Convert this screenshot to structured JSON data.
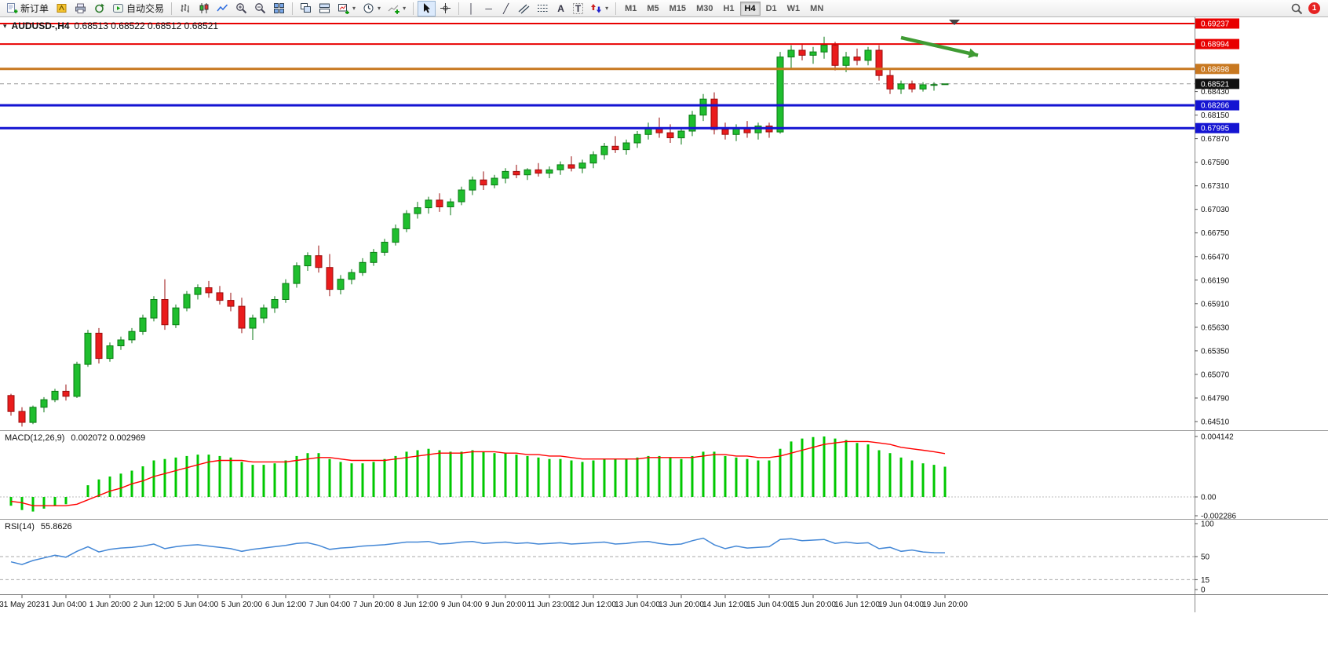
{
  "toolbar": {
    "new_order": "新订单",
    "autotrading": "自动交易",
    "timeframes": [
      "M1",
      "M5",
      "M15",
      "M30",
      "H1",
      "H4",
      "D1",
      "W1",
      "MN"
    ],
    "active_timeframe": "H4",
    "notification_count": "1"
  },
  "icons": {
    "one_click": "▾",
    "caret": "▾",
    "vline": "│",
    "hline": "─",
    "tline": "╱",
    "text_tool": "A",
    "label_tool": "T"
  },
  "chart": {
    "title": "AUDUSD-,H4",
    "ohlc": "0.68513 0.68522 0.68512 0.68521"
  },
  "colors": {
    "bull": "#1FBE2E",
    "bear": "#EA1C1C",
    "bull_stroke": "#0B7A14",
    "bear_stroke": "#9A0D0D",
    "macd_hist": "#00C800",
    "macd_signal": "#FF0000",
    "rsi_line": "#4387D6",
    "arrow": "#3F9B33",
    "badge_current": "#111111"
  },
  "chart_data": [
    {
      "type": "candlestick",
      "symbol": "AUDUSD-",
      "timeframe": "H4",
      "ohlc_display": "0.68513 0.68522 0.68512 0.68521",
      "scale_top": 0.69237,
      "scale_bottom": 0.6451,
      "y_ticks": [
        "0.68430",
        "0.68150",
        "0.67870",
        "0.67590",
        "0.67310",
        "0.67030",
        "0.66750",
        "0.66470",
        "0.66190",
        "0.65910",
        "0.65630",
        "0.65350",
        "0.65070",
        "0.64790",
        "0.64510"
      ],
      "hlines": [
        {
          "price": 0.69237,
          "label": "0.69237",
          "color": "#E80000",
          "width": 2
        },
        {
          "price": 0.68994,
          "label": "0.68994",
          "color": "#E80000",
          "width": 2
        },
        {
          "price": 0.68698,
          "label": "0.68698",
          "color": "#C87820",
          "width": 3
        },
        {
          "price": 0.68266,
          "label": "0.68266",
          "color": "#1414D2",
          "width": 3
        },
        {
          "price": 0.67995,
          "label": "0.67995",
          "color": "#1414D2",
          "width": 3
        }
      ],
      "current_price": {
        "value": 0.68521,
        "label": "0.68521"
      },
      "arrow": {
        "from_index": 81,
        "from_price": 0.6907,
        "to_index": 88,
        "to_price": 0.6886
      },
      "candles": [
        [
          0.6482,
          0.6484,
          0.6458,
          0.6463
        ],
        [
          0.6463,
          0.6468,
          0.6445,
          0.645
        ],
        [
          0.645,
          0.647,
          0.6448,
          0.6468
        ],
        [
          0.6468,
          0.648,
          0.6462,
          0.6477
        ],
        [
          0.6477,
          0.649,
          0.6474,
          0.6487
        ],
        [
          0.6487,
          0.6495,
          0.6476,
          0.6481
        ],
        [
          0.6481,
          0.6522,
          0.6479,
          0.6519
        ],
        [
          0.6519,
          0.656,
          0.6516,
          0.6556
        ],
        [
          0.6556,
          0.6562,
          0.652,
          0.6526
        ],
        [
          0.6526,
          0.6545,
          0.6522,
          0.6541
        ],
        [
          0.6541,
          0.6552,
          0.6536,
          0.6548
        ],
        [
          0.6548,
          0.6562,
          0.6544,
          0.6558
        ],
        [
          0.6558,
          0.6578,
          0.6554,
          0.6574
        ],
        [
          0.6574,
          0.66,
          0.657,
          0.6596
        ],
        [
          0.6596,
          0.662,
          0.656,
          0.6566
        ],
        [
          0.6566,
          0.659,
          0.6562,
          0.6586
        ],
        [
          0.6586,
          0.6606,
          0.6582,
          0.6602
        ],
        [
          0.6602,
          0.6614,
          0.6596,
          0.661
        ],
        [
          0.661,
          0.6618,
          0.6598,
          0.6604
        ],
        [
          0.6604,
          0.6612,
          0.659,
          0.6595
        ],
        [
          0.6595,
          0.6604,
          0.6582,
          0.6588
        ],
        [
          0.6588,
          0.6598,
          0.6556,
          0.6562
        ],
        [
          0.6562,
          0.6578,
          0.6548,
          0.6574
        ],
        [
          0.6574,
          0.659,
          0.6568,
          0.6586
        ],
        [
          0.6586,
          0.66,
          0.658,
          0.6596
        ],
        [
          0.6596,
          0.662,
          0.6592,
          0.6615
        ],
        [
          0.6615,
          0.664,
          0.661,
          0.6636
        ],
        [
          0.6636,
          0.6652,
          0.663,
          0.6648
        ],
        [
          0.6648,
          0.666,
          0.6628,
          0.6634
        ],
        [
          0.6634,
          0.665,
          0.66,
          0.6608
        ],
        [
          0.6608,
          0.6625,
          0.6602,
          0.662
        ],
        [
          0.662,
          0.6632,
          0.6614,
          0.6628
        ],
        [
          0.6628,
          0.6645,
          0.6624,
          0.664
        ],
        [
          0.664,
          0.6656,
          0.6636,
          0.6652
        ],
        [
          0.6652,
          0.6668,
          0.6648,
          0.6664
        ],
        [
          0.6664,
          0.6685,
          0.666,
          0.668
        ],
        [
          0.668,
          0.6702,
          0.6676,
          0.6698
        ],
        [
          0.6698,
          0.6712,
          0.6692,
          0.6705
        ],
        [
          0.6705,
          0.6718,
          0.6698,
          0.6714
        ],
        [
          0.6714,
          0.6722,
          0.67,
          0.6706
        ],
        [
          0.6706,
          0.6716,
          0.6696,
          0.6712
        ],
        [
          0.6712,
          0.673,
          0.6708,
          0.6726
        ],
        [
          0.6726,
          0.6742,
          0.672,
          0.6738
        ],
        [
          0.6738,
          0.6748,
          0.6726,
          0.6732
        ],
        [
          0.6732,
          0.6744,
          0.6728,
          0.674
        ],
        [
          0.674,
          0.6752,
          0.6734,
          0.6748
        ],
        [
          0.6748,
          0.6756,
          0.674,
          0.6744
        ],
        [
          0.6744,
          0.6752,
          0.6738,
          0.675
        ],
        [
          0.675,
          0.6758,
          0.6742,
          0.6746
        ],
        [
          0.6746,
          0.6754,
          0.674,
          0.675
        ],
        [
          0.675,
          0.676,
          0.6744,
          0.6756
        ],
        [
          0.6756,
          0.6766,
          0.6748,
          0.6752
        ],
        [
          0.6752,
          0.6762,
          0.6746,
          0.6758
        ],
        [
          0.6758,
          0.6772,
          0.6752,
          0.6768
        ],
        [
          0.6768,
          0.6782,
          0.6762,
          0.6778
        ],
        [
          0.6778,
          0.679,
          0.677,
          0.6774
        ],
        [
          0.6774,
          0.6786,
          0.6768,
          0.6782
        ],
        [
          0.6782,
          0.6796,
          0.6776,
          0.6792
        ],
        [
          0.6792,
          0.6806,
          0.6786,
          0.68
        ],
        [
          0.68,
          0.6812,
          0.6788,
          0.6794
        ],
        [
          0.6794,
          0.6804,
          0.6782,
          0.6788
        ],
        [
          0.6788,
          0.68,
          0.678,
          0.6796
        ],
        [
          0.6796,
          0.682,
          0.679,
          0.6815
        ],
        [
          0.6815,
          0.684,
          0.6808,
          0.6834
        ],
        [
          0.6834,
          0.6842,
          0.6792,
          0.6798
        ],
        [
          0.6798,
          0.6806,
          0.6786,
          0.6792
        ],
        [
          0.6792,
          0.6804,
          0.6784,
          0.68
        ],
        [
          0.68,
          0.6808,
          0.6788,
          0.6794
        ],
        [
          0.6794,
          0.6806,
          0.6786,
          0.6802
        ],
        [
          0.6802,
          0.6806,
          0.6788,
          0.6795
        ],
        [
          0.6795,
          0.689,
          0.6793,
          0.6884
        ],
        [
          0.6884,
          0.6898,
          0.687,
          0.6892
        ],
        [
          0.6892,
          0.69,
          0.688,
          0.6886
        ],
        [
          0.6886,
          0.6896,
          0.6876,
          0.689
        ],
        [
          0.689,
          0.6908,
          0.6882,
          0.6898
        ],
        [
          0.6898,
          0.6902,
          0.6868,
          0.6874
        ],
        [
          0.6874,
          0.689,
          0.6866,
          0.6884
        ],
        [
          0.6884,
          0.6894,
          0.6874,
          0.688
        ],
        [
          0.688,
          0.6896,
          0.6874,
          0.6892
        ],
        [
          0.6892,
          0.6898,
          0.6856,
          0.6862
        ],
        [
          0.6862,
          0.687,
          0.684,
          0.6846
        ],
        [
          0.6846,
          0.6856,
          0.684,
          0.6852
        ],
        [
          0.6852,
          0.6856,
          0.6842,
          0.6846
        ],
        [
          0.6846,
          0.6854,
          0.6843,
          0.6851
        ],
        [
          0.6851,
          0.6854,
          0.6844,
          0.68513
        ],
        [
          0.68513,
          0.68522,
          0.68512,
          0.68521
        ]
      ],
      "x_labels": [
        {
          "i": 1,
          "t": "31 May 2023"
        },
        {
          "i": 5,
          "t": "1 Jun 04:00"
        },
        {
          "i": 9,
          "t": "1 Jun 20:00"
        },
        {
          "i": 13,
          "t": "2 Jun 12:00"
        },
        {
          "i": 17,
          "t": "5 Jun 04:00"
        },
        {
          "i": 21,
          "t": "5 Jun 20:00"
        },
        {
          "i": 25,
          "t": "6 Jun 12:00"
        },
        {
          "i": 29,
          "t": "7 Jun 04:00"
        },
        {
          "i": 33,
          "t": "7 Jun 20:00"
        },
        {
          "i": 37,
          "t": "8 Jun 12:00"
        },
        {
          "i": 41,
          "t": "9 Jun 04:00"
        },
        {
          "i": 45,
          "t": "9 Jun 20:00"
        },
        {
          "i": 49,
          "t": "11 Jun 23:00"
        },
        {
          "i": 53,
          "t": "12 Jun 12:00"
        },
        {
          "i": 57,
          "t": "13 Jun 04:00"
        },
        {
          "i": 61,
          "t": "13 Jun 20:00"
        },
        {
          "i": 65,
          "t": "14 Jun 12:00"
        },
        {
          "i": 69,
          "t": "15 Jun 04:00"
        },
        {
          "i": 73,
          "t": "15 Jun 20:00"
        },
        {
          "i": 77,
          "t": "16 Jun 12:00"
        },
        {
          "i": 81,
          "t": "19 Jun 04:00"
        },
        {
          "i": 85,
          "t": "19 Jun 20:00"
        }
      ]
    },
    {
      "type": "macd-histogram",
      "label": "MACD(12,26,9)",
      "values_display": "0.002072 0.002969",
      "macd_current": 0.002072,
      "signal_current": 0.002969,
      "scale_labels": [
        "0.004142",
        "0.00",
        "-0.002286"
      ],
      "scale_max": 0.004142,
      "scale_min": -0.002286,
      "histogram": [
        -0.0006,
        -0.0009,
        -0.001,
        -0.0008,
        -0.0006,
        -0.0005,
        0.0,
        0.0008,
        0.0012,
        0.0014,
        0.0016,
        0.0018,
        0.0021,
        0.0025,
        0.0026,
        0.0027,
        0.0028,
        0.0029,
        0.0029,
        0.0028,
        0.0027,
        0.0024,
        0.0022,
        0.0022,
        0.0023,
        0.0025,
        0.0028,
        0.003,
        0.003,
        0.0026,
        0.0024,
        0.0023,
        0.0023,
        0.0024,
        0.0026,
        0.0028,
        0.0031,
        0.0032,
        0.0033,
        0.0032,
        0.0031,
        0.0031,
        0.0032,
        0.0031,
        0.003,
        0.003,
        0.0029,
        0.0028,
        0.0027,
        0.0026,
        0.0026,
        0.0025,
        0.0024,
        0.0025,
        0.0026,
        0.0026,
        0.0026,
        0.0027,
        0.0028,
        0.0028,
        0.0027,
        0.0026,
        0.0028,
        0.0031,
        0.0031,
        0.0028,
        0.0027,
        0.0026,
        0.0025,
        0.0025,
        0.0033,
        0.0038,
        0.004,
        0.0041,
        0.00414,
        0.004,
        0.0039,
        0.0037,
        0.0036,
        0.0032,
        0.003,
        0.0027,
        0.0025,
        0.0023,
        0.0022,
        0.002072
      ],
      "signal": [
        -0.0003,
        -0.0004,
        -0.0006,
        -0.0006,
        -0.0006,
        -0.0006,
        -0.0005,
        -0.0002,
        0.0001,
        0.0004,
        0.0006,
        0.0009,
        0.0011,
        0.0014,
        0.0016,
        0.0018,
        0.002,
        0.0022,
        0.0024,
        0.0025,
        0.0025,
        0.0025,
        0.0024,
        0.0024,
        0.0024,
        0.0024,
        0.0025,
        0.0026,
        0.0027,
        0.0027,
        0.0026,
        0.0025,
        0.0025,
        0.0025,
        0.0025,
        0.0026,
        0.0027,
        0.0028,
        0.0029,
        0.003,
        0.003,
        0.003,
        0.0031,
        0.0031,
        0.0031,
        0.003,
        0.003,
        0.0029,
        0.0029,
        0.0028,
        0.0028,
        0.0027,
        0.0026,
        0.0026,
        0.0026,
        0.0026,
        0.0026,
        0.0026,
        0.0027,
        0.0027,
        0.0027,
        0.0027,
        0.0027,
        0.0028,
        0.0029,
        0.0029,
        0.0028,
        0.0028,
        0.0027,
        0.0027,
        0.0028,
        0.003,
        0.0032,
        0.0034,
        0.0036,
        0.0037,
        0.0038,
        0.0038,
        0.0038,
        0.0037,
        0.0036,
        0.0034,
        0.0033,
        0.0032,
        0.0031,
        0.002969
      ]
    },
    {
      "type": "rsi",
      "label": "RSI(14)",
      "value_display": "55.8626",
      "current": 55.8626,
      "scale_labels": [
        "100",
        "50",
        "15",
        "0"
      ],
      "levels": [
        50,
        15
      ],
      "values": [
        42,
        38,
        44,
        48,
        52,
        49,
        58,
        65,
        57,
        61,
        63,
        64,
        66,
        69,
        62,
        65,
        67,
        68,
        66,
        64,
        62,
        58,
        61,
        63,
        65,
        67,
        70,
        71,
        67,
        61,
        63,
        64,
        66,
        67,
        68,
        70,
        72,
        72,
        73,
        69,
        70,
        72,
        73,
        70,
        71,
        72,
        70,
        71,
        69,
        70,
        71,
        69,
        70,
        71,
        72,
        69,
        70,
        72,
        73,
        70,
        68,
        69,
        74,
        78,
        68,
        62,
        66,
        63,
        64,
        65,
        76,
        77,
        74,
        75,
        76,
        70,
        72,
        70,
        71,
        62,
        64,
        58,
        60,
        57,
        56,
        55.8626
      ]
    }
  ]
}
